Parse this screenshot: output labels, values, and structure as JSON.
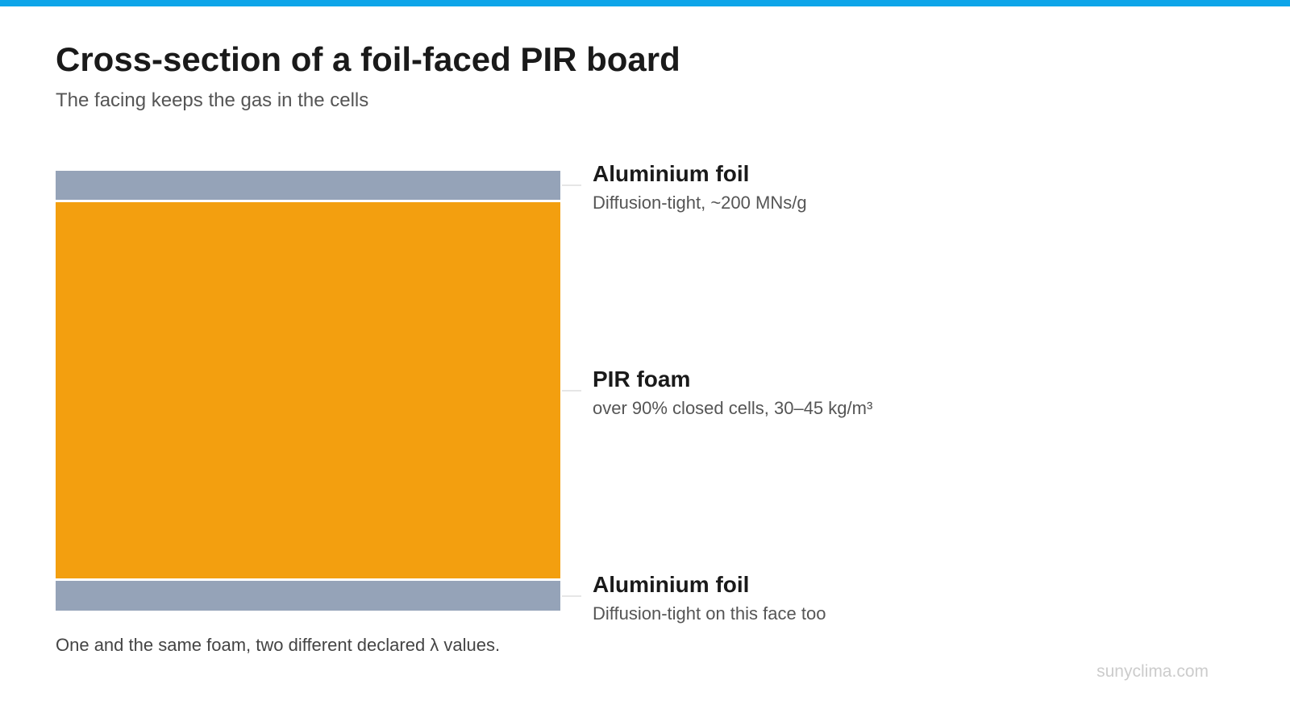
{
  "header": {
    "title": "Cross-section of a foil-faced PIR board",
    "subtitle": "The facing keeps the gas in the cells"
  },
  "layers": [
    {
      "label": "Aluminium foil",
      "description": "Diffusion-tight, ~200 MNs/g"
    },
    {
      "label": "PIR foam",
      "description": "over 90% closed cells, 30–45 kg/m³"
    },
    {
      "label": "Aluminium foil",
      "description": "Diffusion-tight on this face too"
    }
  ],
  "footnote": "One and the same foam, two different declared λ values.",
  "watermark": "sunyclima.com"
}
